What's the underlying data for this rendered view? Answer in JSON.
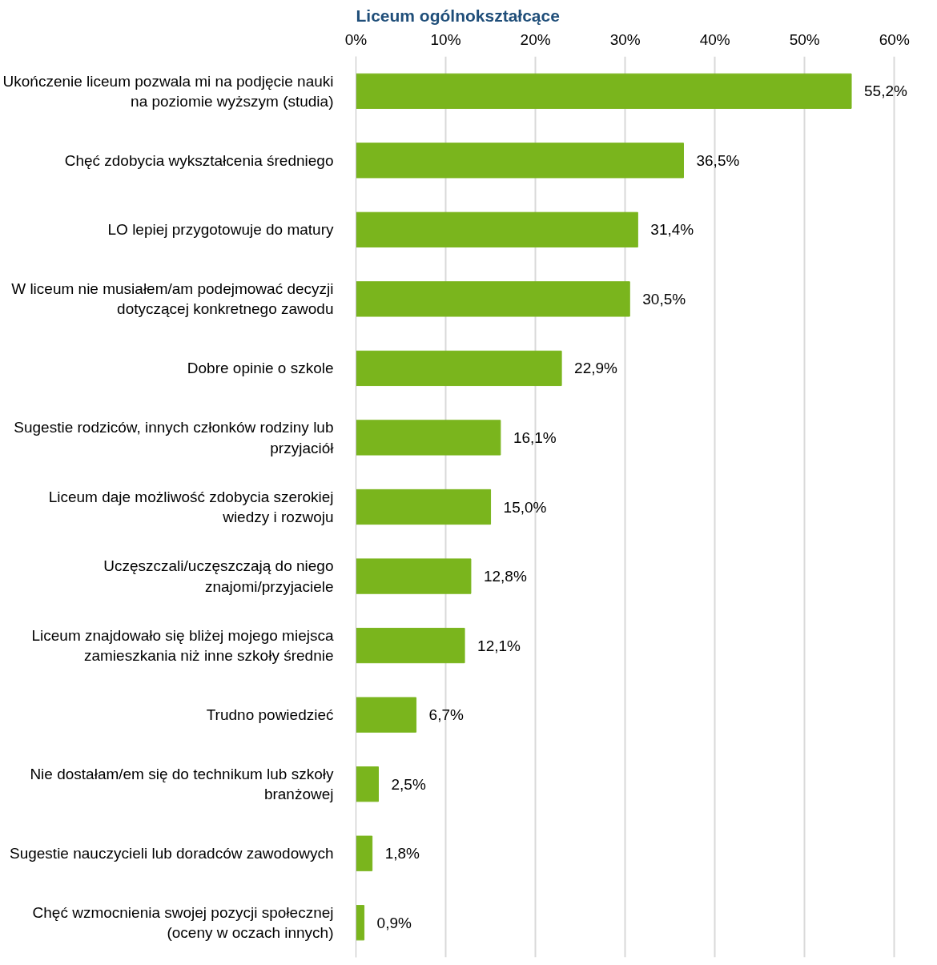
{
  "chart_data": {
    "type": "bar",
    "orientation": "horizontal",
    "title": "Liceum ogólnokształcące",
    "categories": [
      "Ukończenie liceum pozwala mi na podjęcie nauki na poziomie wyższym (studia)",
      "Chęć zdobycia wykształcenia średniego",
      "LO lepiej przygotowuje do matury",
      "W liceum nie musiałem/am podejmować decyzji dotyczącej konkretnego zawodu",
      "Dobre opinie o szkole",
      "Sugestie rodziców, innych członków rodziny lub przyjaciół",
      "Liceum daje możliwość zdobycia szerokiej wiedzy i rozwoju",
      "Uczęszczali/uczęszczają do niego znajomi/przyjaciele",
      "Liceum znajdowało się bliżej mojego miejsca zamieszkania niż inne szkoły średnie",
      "Trudno powiedzieć",
      "Nie dostałam/em się do technikum lub szkoły branżowej",
      "Sugestie nauczycieli lub doradców zawodowych",
      "Chęć wzmocnienia swojej pozycji społecznej (oceny w oczach innych)"
    ],
    "values": [
      55.2,
      36.5,
      31.4,
      30.5,
      22.9,
      16.1,
      15.0,
      12.8,
      12.1,
      6.7,
      2.5,
      1.8,
      0.9
    ],
    "value_labels": [
      "55,2%",
      "36,5%",
      "31,4%",
      "30,5%",
      "22,9%",
      "16,1%",
      "15,0%",
      "12,8%",
      "12,1%",
      "6,7%",
      "2,5%",
      "1,8%",
      "0,9%"
    ],
    "color": "#7ab51d",
    "xlim": [
      0,
      60
    ],
    "xticks": [
      {
        "value": 0,
        "label": "0%"
      },
      {
        "value": 10,
        "label": "10%"
      },
      {
        "value": 20,
        "label": "20%"
      },
      {
        "value": 30,
        "label": "30%"
      },
      {
        "value": 40,
        "label": "40%"
      },
      {
        "value": 50,
        "label": "50%"
      },
      {
        "value": 60,
        "label": "60%"
      }
    ],
    "grid": "x"
  }
}
